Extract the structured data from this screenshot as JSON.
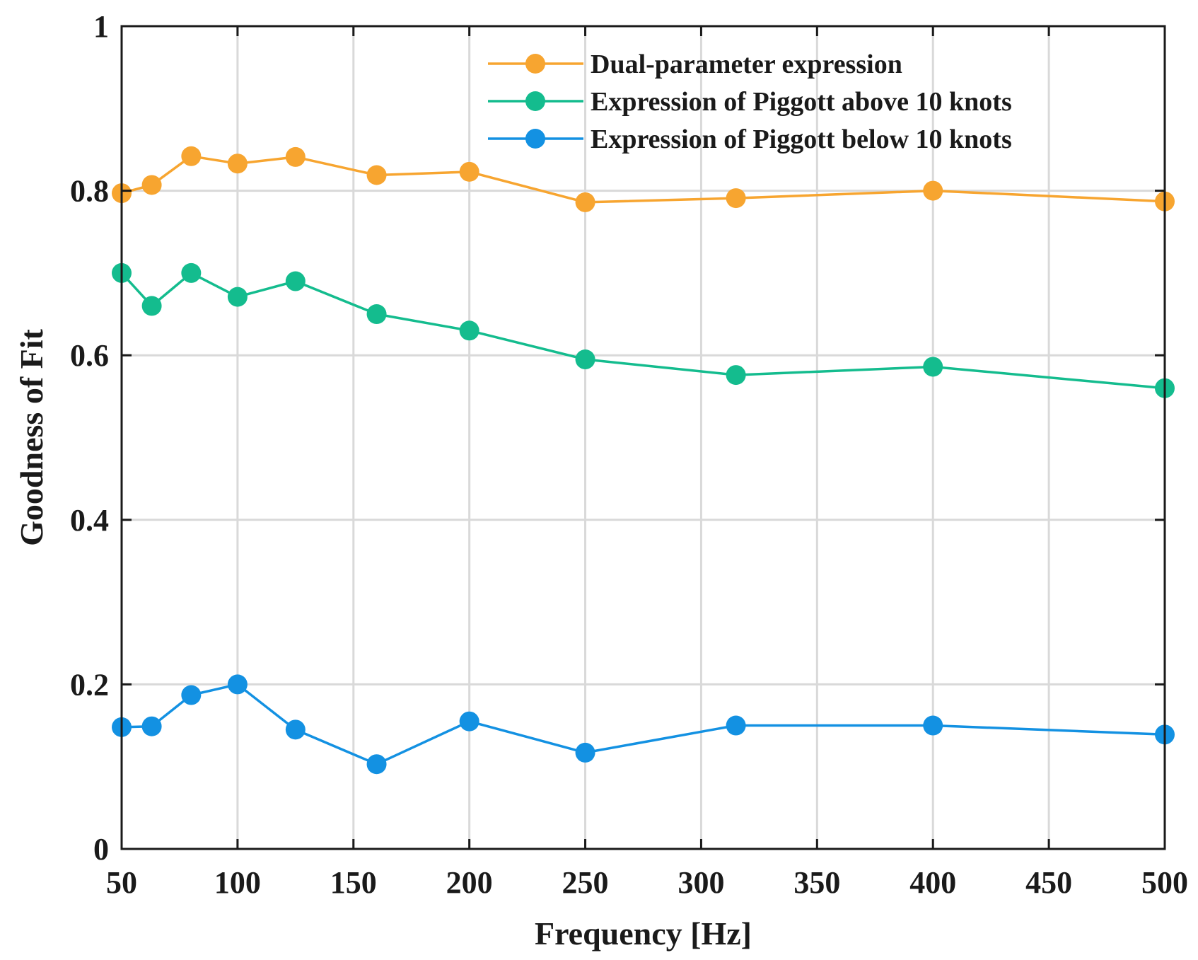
{
  "chart_data": {
    "type": "line",
    "title": "",
    "xlabel": "Frequency [Hz]",
    "ylabel": "Goodness of Fit",
    "xlim": [
      50,
      500
    ],
    "ylim": [
      0,
      1
    ],
    "xticks": [
      50,
      100,
      150,
      200,
      250,
      300,
      350,
      400,
      450,
      500
    ],
    "yticks": [
      0,
      0.2,
      0.4,
      0.6,
      0.8,
      1
    ],
    "ytick_labels": [
      "0",
      "0.2",
      "0.4",
      "0.6",
      "0.8",
      "1"
    ],
    "grid": true,
    "legend_position": "top-right",
    "x": [
      50,
      63,
      80,
      100,
      125,
      160,
      200,
      250,
      315,
      400,
      500
    ],
    "series": [
      {
        "name": "Dual-parameter expression",
        "color": "#F7A530",
        "values": [
          0.797,
          0.807,
          0.842,
          0.833,
          0.841,
          0.819,
          0.823,
          0.786,
          0.791,
          0.8,
          0.787
        ]
      },
      {
        "name": "Expression of Piggott above 10 knots",
        "color": "#14BC8E",
        "values": [
          0.7,
          0.66,
          0.7,
          0.671,
          0.69,
          0.65,
          0.63,
          0.595,
          0.576,
          0.586,
          0.56
        ]
      },
      {
        "name": "Expression of Piggott below 10 knots",
        "color": "#1391E2",
        "values": [
          0.148,
          0.149,
          0.187,
          0.2,
          0.145,
          0.103,
          0.155,
          0.117,
          0.15,
          0.15,
          0.139
        ]
      }
    ]
  }
}
